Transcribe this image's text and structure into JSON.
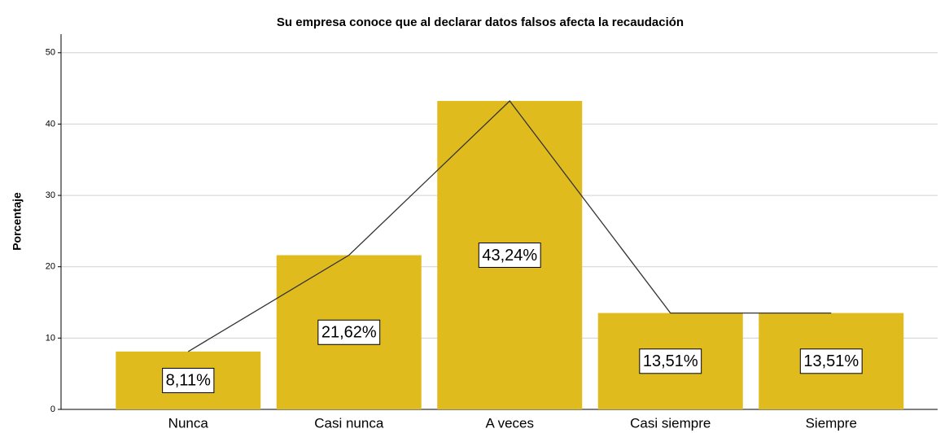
{
  "chart_data": {
    "type": "bar",
    "title": "Su empresa conoce que al declarar datos falsos afecta la recaudación",
    "y_label": "Porcentaje",
    "categories": [
      "Nunca",
      "Casi nunca",
      "A veces",
      "Casi siempre",
      "Siempre"
    ],
    "values": [
      8.11,
      21.62,
      43.24,
      13.51,
      13.51
    ],
    "value_labels": [
      "8,11%",
      "21,62%",
      "43,24%",
      "13,51%",
      "13,51%"
    ],
    "color": "#e0bb1e",
    "line_color": "#333333",
    "ylim": [
      0,
      52.6
    ],
    "yticks": [
      0,
      10,
      20,
      30,
      40,
      50
    ],
    "grid": true
  }
}
